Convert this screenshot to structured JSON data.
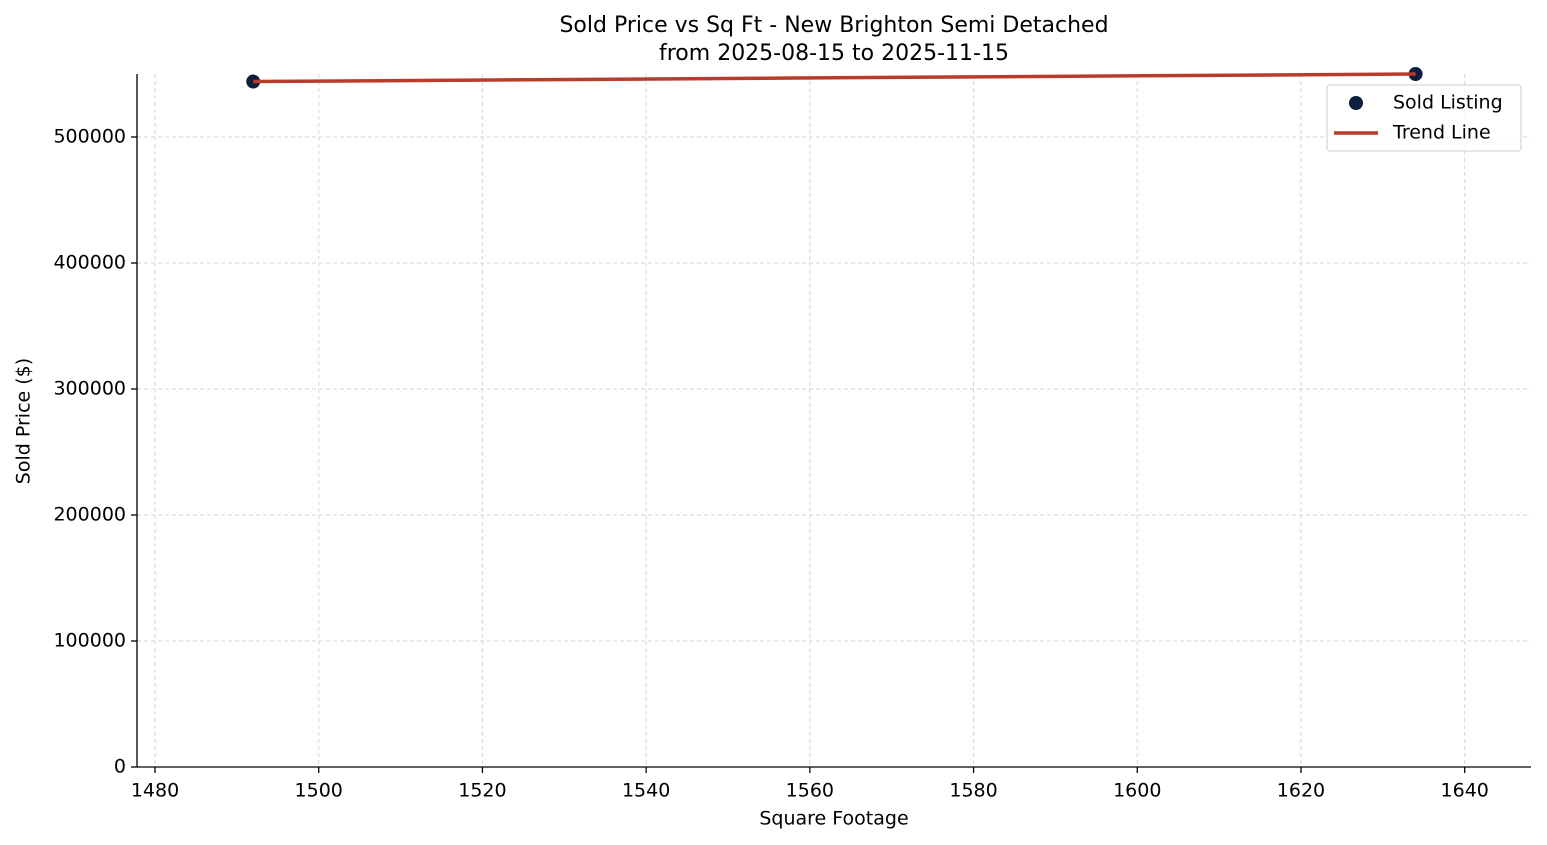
{
  "chart_data": {
    "type": "scatter",
    "title": "Sold Price vs Sq Ft - New Brighton Semi Detached",
    "subtitle": "from 2025-08-15 to 2025-11-15",
    "x_label": "Square Footage",
    "y_label": "Sold Price ($)",
    "series": [
      {
        "name": "Sold Listing",
        "type": "scatter",
        "color": "#0d1f3c",
        "x": [
          1492,
          1634
        ],
        "values": [
          544000,
          550000
        ]
      },
      {
        "name": "Trend Line",
        "type": "line",
        "color": "#b83c2b",
        "x": [
          1492,
          1634
        ],
        "values": [
          544000,
          550000
        ]
      }
    ],
    "xlim": [
      1477.8,
      1648.1
    ],
    "ylim": [
      0,
      550000
    ],
    "xticks": [
      1480,
      1500,
      1520,
      1540,
      1560,
      1580,
      1600,
      1620,
      1640
    ],
    "yticks": [
      0,
      100000,
      200000,
      300000,
      400000,
      500000
    ],
    "grid": true,
    "legend": "upper right"
  }
}
